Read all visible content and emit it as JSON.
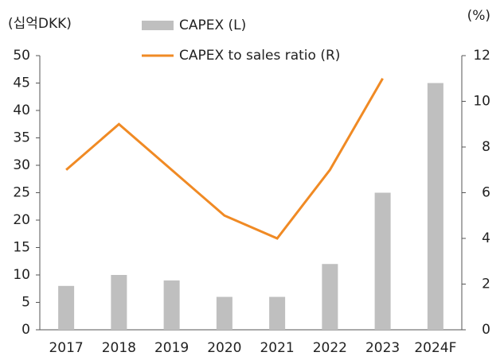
{
  "chart_data": {
    "type": "bar",
    "y_label": "(십억DKK)",
    "y2_label": "(%)",
    "categories": [
      "2017",
      "2018",
      "2019",
      "2020",
      "2021",
      "2022",
      "2023",
      "2024F"
    ],
    "series": [
      {
        "name": "CAPEX (L)",
        "type": "bar",
        "color": "#bfbfbf",
        "values": [
          8,
          10,
          9,
          6,
          6,
          12,
          25,
          45
        ]
      },
      {
        "name": "CAPEX to sales ratio (R)",
        "type": "line",
        "axis": "y2",
        "color": "#f08a24",
        "values": [
          7,
          9,
          7,
          5,
          4,
          7,
          11,
          null
        ]
      }
    ],
    "ylim": [
      0,
      50
    ],
    "yticks": [
      0,
      5,
      10,
      15,
      20,
      25,
      30,
      35,
      40,
      45,
      50
    ],
    "y2lim": [
      0,
      12
    ],
    "y2ticks": [
      0,
      2,
      4,
      6,
      8,
      10,
      12
    ],
    "grid": false
  }
}
